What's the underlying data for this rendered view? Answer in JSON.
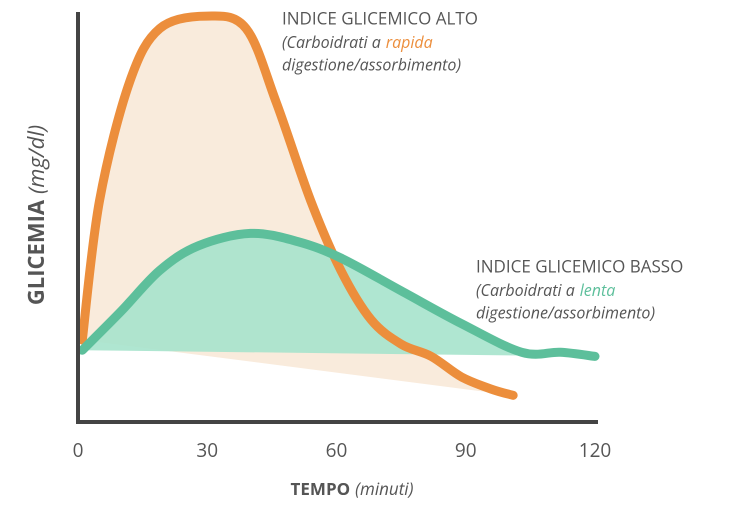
{
  "chart_data": {
    "type": "line",
    "x_label": {
      "text": "TEMPO",
      "unit": "(minuti)"
    },
    "y_label": {
      "text": "GLICEMIA",
      "unit": "(mg/dl)"
    },
    "xlim": [
      0,
      120
    ],
    "xticks": [
      0,
      30,
      60,
      90,
      120
    ],
    "ylim": [
      0,
      100
    ],
    "series": [
      {
        "name": "INDICE GLICEMICO ALTO",
        "color": "#ec8e3c",
        "fill": "#f9ebdc",
        "note": [
          "(Carboidrati a",
          "rapida",
          "digestione/assorbimento)"
        ],
        "x": [
          1,
          5,
          12,
          19,
          30,
          39,
          46,
          54,
          61,
          68,
          75,
          82,
          89,
          96,
          101
        ],
        "values": [
          20,
          54,
          83,
          96,
          99,
          96,
          78,
          54,
          37,
          25,
          19,
          16,
          11,
          8,
          6.5
        ]
      },
      {
        "name": "INDICE GLICEMICO BASSO",
        "color": "#5dbf9b",
        "fill": "#a6e3cc",
        "note": [
          "(Carboidrati a",
          "lenta",
          "digestione/assorbimento)"
        ],
        "x": [
          1,
          10,
          19,
          28,
          40,
          51,
          61,
          75,
          89,
          103,
          112,
          120
        ],
        "values": [
          17.5,
          27,
          37,
          43,
          46,
          44,
          40,
          32,
          24,
          17,
          17,
          16
        ]
      }
    ]
  }
}
